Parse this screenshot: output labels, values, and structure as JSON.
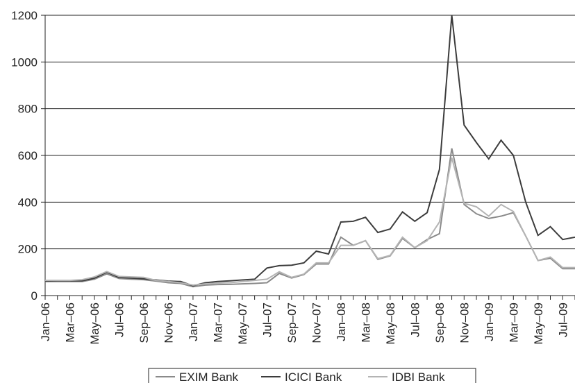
{
  "chart_data": {
    "type": "line",
    "title": "",
    "xlabel": "",
    "ylabel": "",
    "ylim": [
      0,
      1200
    ],
    "yticks": [
      0,
      200,
      400,
      600,
      800,
      1000,
      1200
    ],
    "grid": "horizontal",
    "legend_position": "bottom",
    "categories": [
      "Jan–06",
      "Feb–06",
      "Mar–06",
      "Apr–06",
      "May–06",
      "Jun–06",
      "Jul–06",
      "Aug–06",
      "Sep–06",
      "Oct–06",
      "Nov–06",
      "Dec–06",
      "Jan–07",
      "Feb–07",
      "Mar–07",
      "Apr–07",
      "May–07",
      "Jun–07",
      "Jul–07",
      "Aug–07",
      "Sep–07",
      "Oct–07",
      "Nov–07",
      "Dec–07",
      "Jan–08",
      "Feb–08",
      "Mar–08",
      "Apr–08",
      "May–08",
      "Jun–08",
      "Jul–08",
      "Aug–08",
      "Sep–08",
      "Oct–08",
      "Nov–08",
      "Dec–08",
      "Jan–09",
      "Feb–09",
      "Mar–09",
      "Apr–09",
      "May–09",
      "Jun–09",
      "Jul–09",
      "Aug–09"
    ],
    "xtick_labels": [
      "Jan–06",
      "Mar–06",
      "May–06",
      "Jul–06",
      "Sep–06",
      "Nov–06",
      "Jan–07",
      "Mar–07",
      "May–07",
      "Jul–07",
      "Sep–07",
      "Nov–07",
      "Jan–08",
      "Mar–08",
      "May–08",
      "Jul–08",
      "Sep–08",
      "Nov–08",
      "Jan–09",
      "Mar–09",
      "May–09",
      "Jul–09"
    ],
    "series": [
      {
        "name": "EXIM Bank",
        "color": "#8a8a8a",
        "width": 2,
        "values": [
          60,
          60,
          60,
          60,
          70,
          93,
          73,
          70,
          68,
          62,
          55,
          52,
          38,
          45,
          47,
          48,
          50,
          52,
          55,
          95,
          75,
          90,
          135,
          135,
          250,
          215,
          235,
          155,
          170,
          245,
          205,
          240,
          265,
          630,
          390,
          350,
          330,
          340,
          355,
          255,
          150,
          160,
          115,
          115
        ]
      },
      {
        "name": "ICICI Bank",
        "color": "#3c3c3c",
        "width": 2,
        "values": [
          62,
          63,
          63,
          63,
          75,
          100,
          78,
          75,
          72,
          67,
          62,
          60,
          42,
          55,
          60,
          63,
          67,
          70,
          118,
          128,
          130,
          140,
          190,
          178,
          315,
          318,
          335,
          270,
          285,
          358,
          318,
          355,
          540,
          1200,
          730,
          655,
          585,
          665,
          600,
          400,
          258,
          295,
          240,
          250
        ]
      },
      {
        "name": "IDBI Bank",
        "color": "#b4b4b4",
        "width": 2,
        "values": [
          65,
          65,
          65,
          68,
          80,
          103,
          82,
          80,
          78,
          65,
          60,
          55,
          45,
          50,
          53,
          55,
          60,
          65,
          70,
          102,
          78,
          92,
          140,
          140,
          215,
          215,
          235,
          158,
          172,
          250,
          205,
          235,
          315,
          590,
          395,
          380,
          340,
          390,
          360,
          255,
          150,
          165,
          120,
          120
        ]
      }
    ]
  }
}
